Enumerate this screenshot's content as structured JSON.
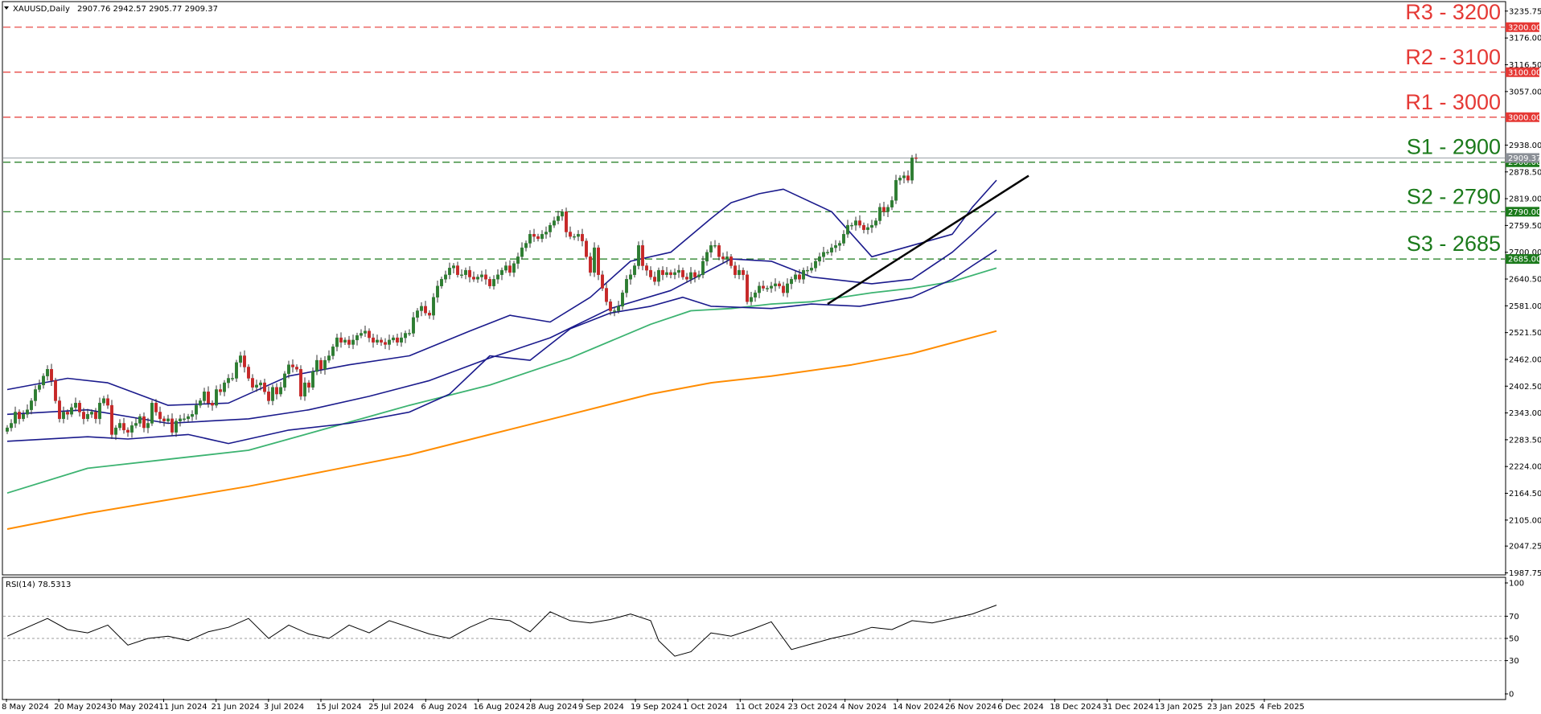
{
  "header": {
    "symbol": "XAUUSD,Daily",
    "ohlc": "2907.76 2942.57 2905.77 2909.37"
  },
  "rsi_header": {
    "label": "RSI(14) 78.5313"
  },
  "colors": {
    "bull_candle": "#2e7d32",
    "bear_candle": "#c62828",
    "bollinger": "#1a1a8c",
    "ma_green": "#3cb371",
    "ma_orange": "#ff8c00",
    "resistance": "#e53935",
    "support": "#1b7a1b",
    "trendline": "#000000"
  },
  "levels": [
    {
      "label": "R3 - 3200",
      "value": 3200,
      "type": "resistance",
      "badge": "3200.00"
    },
    {
      "label": "R2 - 3100",
      "value": 3100,
      "type": "resistance",
      "badge": "3100.00"
    },
    {
      "label": "R1 - 3000",
      "value": 3000,
      "type": "resistance",
      "badge": "3000.00"
    },
    {
      "label": "S1 - 2900",
      "value": 2900,
      "type": "support",
      "badge": "2900.00"
    },
    {
      "label": "S2 - 2790",
      "value": 2790,
      "type": "support",
      "badge": "2790.00"
    },
    {
      "label": "S3 - 2685",
      "value": 2685,
      "type": "support",
      "badge": "2685.00"
    }
  ],
  "chart_data": [
    {
      "type": "candlestick",
      "symbol": "XAUUSD",
      "timeframe": "Daily",
      "y_ticks": [
        "3235.75",
        "3176.00",
        "3116.50",
        "3057.00",
        "2938.00",
        "2878.50",
        "2819.00",
        "2759.50",
        "2700.00",
        "2640.50",
        "2581.00",
        "2521.50",
        "2462.00",
        "2402.50",
        "2343.00",
        "2283.50",
        "2224.00",
        "2164.50",
        "2105.00",
        "2047.25",
        "1987.75"
      ],
      "ylim": [
        1985,
        3255
      ],
      "x_ticks": [
        "8 May 2024",
        "20 May 2024",
        "30 May 2024",
        "11 Jun 2024",
        "21 Jun 2024",
        "3 Jul 2024",
        "15 Jul 2024",
        "25 Jul 2024",
        "6 Aug 2024",
        "16 Aug 2024",
        "28 Aug 2024",
        "9 Sep 2024",
        "19 Sep 2024",
        "1 Oct 2024",
        "11 Oct 2024",
        "23 Oct 2024",
        "4 Nov 2024",
        "14 Nov 2024",
        "26 Nov 2024",
        "6 Dec 2024",
        "18 Dec 2024",
        "31 Dec 2024",
        "13 Jan 2025",
        "23 Jan 2025",
        "4 Feb 2025"
      ],
      "current_price": "2909.37",
      "close": [
        2310,
        2320,
        2345,
        2330,
        2340,
        2350,
        2370,
        2395,
        2405,
        2425,
        2440,
        2415,
        2370,
        2330,
        2345,
        2340,
        2355,
        2365,
        2345,
        2330,
        2340,
        2345,
        2330,
        2365,
        2375,
        2360,
        2295,
        2310,
        2320,
        2305,
        2300,
        2315,
        2320,
        2335,
        2310,
        2320,
        2365,
        2345,
        2330,
        2325,
        2330,
        2300,
        2325,
        2330,
        2330,
        2335,
        2340,
        2360,
        2370,
        2390,
        2365,
        2360,
        2395,
        2390,
        2410,
        2420,
        2420,
        2455,
        2470,
        2445,
        2420,
        2400,
        2405,
        2410,
        2390,
        2370,
        2400,
        2385,
        2400,
        2430,
        2450,
        2445,
        2440,
        2380,
        2410,
        2400,
        2435,
        2460,
        2440,
        2460,
        2470,
        2490,
        2510,
        2500,
        2505,
        2495,
        2505,
        2515,
        2520,
        2525,
        2510,
        2500,
        2505,
        2500,
        2495,
        2505,
        2510,
        2500,
        2510,
        2520,
        2520,
        2555,
        2570,
        2580,
        2565,
        2560,
        2600,
        2625,
        2640,
        2650,
        2665,
        2670,
        2650,
        2650,
        2660,
        2645,
        2640,
        2645,
        2650,
        2640,
        2625,
        2640,
        2650,
        2660,
        2670,
        2655,
        2675,
        2690,
        2710,
        2720,
        2740,
        2735,
        2730,
        2740,
        2745,
        2760,
        2770,
        2780,
        2790,
        2745,
        2735,
        2735,
        2740,
        2725,
        2690,
        2655,
        2710,
        2650,
        2620,
        2590,
        2570,
        2570,
        2580,
        2610,
        2640,
        2650,
        2670,
        2715,
        2670,
        2660,
        2645,
        2635,
        2660,
        2650,
        2655,
        2650,
        2655,
        2660,
        2645,
        2640,
        2655,
        2645,
        2650,
        2680,
        2700,
        2715,
        2715,
        2690,
        2685,
        2690,
        2670,
        2650,
        2660,
        2650,
        2590,
        2600,
        2610,
        2625,
        2620,
        2620,
        2625,
        2630,
        2625,
        2610,
        2630,
        2640,
        2650,
        2640,
        2660,
        2660,
        2665,
        2680,
        2690,
        2700,
        2700,
        2710,
        2715,
        2720,
        2740,
        2760,
        2760,
        2770,
        2760,
        2750,
        2755,
        2760,
        2770,
        2800,
        2790,
        2800,
        2815,
        2860,
        2865,
        2870,
        2860,
        2910,
        2909.37
      ],
      "series": [
        {
          "name": "",
          "kind": "bollinger-upper",
          "x": [
            0,
            15,
            25,
            40,
            55,
            70,
            85,
            100,
            115,
            125,
            135,
            145,
            155,
            165,
            175,
            180,
            187,
            193,
            205,
            215,
            225,
            235,
            240,
            246
          ],
          "values": [
            2395,
            2420,
            2410,
            2360,
            2365,
            2425,
            2450,
            2470,
            2525,
            2560,
            2545,
            2600,
            2680,
            2700,
            2775,
            2810,
            2830,
            2840,
            2790,
            2690,
            2715,
            2740,
            2800,
            2860
          ]
        },
        {
          "name": "",
          "kind": "bollinger-middle",
          "x": [
            0,
            20,
            40,
            60,
            75,
            90,
            105,
            120,
            135,
            150,
            165,
            180,
            190,
            200,
            215,
            225,
            235,
            240,
            246
          ],
          "values": [
            2340,
            2350,
            2320,
            2330,
            2350,
            2380,
            2415,
            2465,
            2510,
            2575,
            2615,
            2685,
            2680,
            2645,
            2630,
            2640,
            2700,
            2740,
            2790
          ]
        },
        {
          "name": "",
          "kind": "bollinger-lower",
          "x": [
            0,
            20,
            30,
            45,
            55,
            70,
            85,
            100,
            110,
            120,
            130,
            140,
            150,
            160,
            168,
            175,
            190,
            200,
            212,
            225,
            235,
            240,
            246
          ],
          "values": [
            2280,
            2290,
            2285,
            2295,
            2275,
            2305,
            2320,
            2345,
            2385,
            2470,
            2460,
            2530,
            2565,
            2580,
            2600,
            2580,
            2575,
            2585,
            2580,
            2600,
            2640,
            2670,
            2705
          ]
        },
        {
          "name": "",
          "kind": "ma-green",
          "x": [
            0,
            20,
            40,
            60,
            80,
            100,
            120,
            140,
            160,
            170,
            180,
            190,
            200,
            215,
            225,
            235,
            246
          ],
          "values": [
            2165,
            2220,
            2240,
            2260,
            2310,
            2360,
            2405,
            2465,
            2540,
            2570,
            2575,
            2585,
            2590,
            2610,
            2620,
            2635,
            2665
          ]
        },
        {
          "name": "",
          "kind": "ma-orange",
          "x": [
            0,
            20,
            40,
            60,
            80,
            100,
            120,
            140,
            160,
            175,
            190,
            210,
            225,
            246
          ],
          "values": [
            2085,
            2120,
            2150,
            2180,
            2215,
            2250,
            2295,
            2340,
            2385,
            2410,
            2425,
            2450,
            2475,
            2525
          ]
        }
      ],
      "trendline": {
        "x": [
          204,
          254
        ],
        "values": [
          2585,
          2870
        ]
      }
    },
    {
      "type": "line",
      "indicator": "RSI(14)",
      "value": "78.5313",
      "y_ticks": [
        "100",
        "70",
        "50",
        "30",
        "0"
      ],
      "ylim": [
        0,
        100
      ],
      "levels": [
        70,
        50,
        30
      ],
      "x": [
        0,
        5,
        10,
        15,
        20,
        25,
        30,
        35,
        40,
        45,
        50,
        55,
        60,
        65,
        70,
        75,
        80,
        85,
        90,
        95,
        100,
        105,
        110,
        115,
        120,
        125,
        130,
        135,
        140,
        145,
        150,
        155,
        160,
        162,
        166,
        170,
        175,
        180,
        185,
        190,
        195,
        200,
        205,
        210,
        215,
        220,
        225,
        230,
        235,
        240,
        246
      ],
      "values": [
        52,
        60,
        68,
        58,
        55,
        62,
        44,
        50,
        52,
        48,
        56,
        60,
        68,
        50,
        62,
        54,
        50,
        62,
        55,
        66,
        60,
        54,
        50,
        60,
        68,
        66,
        56,
        74,
        66,
        64,
        67,
        72,
        66,
        48,
        34,
        38,
        55,
        52,
        58,
        65,
        40,
        45,
        50,
        54,
        60,
        58,
        66,
        64,
        68,
        72,
        80
      ]
    }
  ]
}
